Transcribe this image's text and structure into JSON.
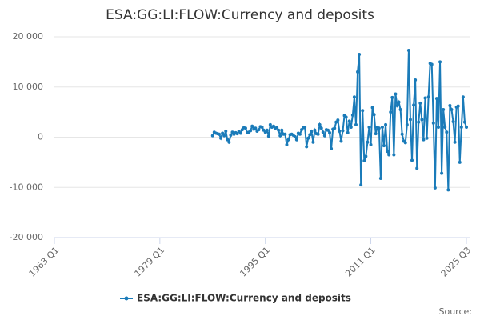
{
  "chart_data": {
    "type": "line",
    "title": "ESA:GG:LI:FLOW:Currency and deposits",
    "source": "Source:",
    "xlim": [
      "1963 Q1",
      "2025 Q3"
    ],
    "xticks": [
      "1963 Q1",
      "1979 Q1",
      "1995 Q1",
      "2011 Q1",
      "2025 Q3"
    ],
    "ylim": [
      -20000,
      20000
    ],
    "yticks": [
      {
        "value": -20000,
        "label": "-20 000"
      },
      {
        "value": -10000,
        "label": "-10 000"
      },
      0,
      {
        "value": 10000,
        "label": "10 000"
      },
      {
        "value": 20000,
        "label": "20 000"
      }
    ],
    "grid": true,
    "x": [
      "1987 Q1",
      "1987 Q2",
      "1987 Q3",
      "1987 Q4",
      "1988 Q1",
      "1988 Q2",
      "1988 Q3",
      "1988 Q4",
      "1989 Q1",
      "1989 Q2",
      "1989 Q3",
      "1989 Q4",
      "1990 Q1",
      "1990 Q2",
      "1990 Q3",
      "1990 Q4",
      "1991 Q1",
      "1991 Q2",
      "1991 Q3",
      "1991 Q4",
      "1992 Q1",
      "1992 Q2",
      "1992 Q3",
      "1992 Q4",
      "1993 Q1",
      "1993 Q2",
      "1993 Q3",
      "1993 Q4",
      "1994 Q1",
      "1994 Q2",
      "1994 Q3",
      "1994 Q4",
      "1995 Q1",
      "1995 Q2",
      "1995 Q3",
      "1995 Q4",
      "1996 Q1",
      "1996 Q2",
      "1996 Q3",
      "1996 Q4",
      "1997 Q1",
      "1997 Q2",
      "1997 Q3",
      "1997 Q4",
      "1998 Q1",
      "1998 Q2",
      "1998 Q3",
      "1998 Q4",
      "1999 Q1",
      "1999 Q2",
      "1999 Q3",
      "1999 Q4",
      "2000 Q1",
      "2000 Q2",
      "2000 Q3",
      "2000 Q4",
      "2001 Q1",
      "2001 Q2",
      "2001 Q3",
      "2001 Q4",
      "2002 Q1",
      "2002 Q2",
      "2002 Q3",
      "2002 Q4",
      "2003 Q1",
      "2003 Q2",
      "2003 Q3",
      "2003 Q4",
      "2004 Q1",
      "2004 Q2",
      "2004 Q3",
      "2004 Q4",
      "2005 Q1",
      "2005 Q2",
      "2005 Q3",
      "2005 Q4",
      "2006 Q1",
      "2006 Q2",
      "2006 Q3",
      "2006 Q4",
      "2007 Q1",
      "2007 Q2",
      "2007 Q3",
      "2007 Q4",
      "2008 Q1",
      "2008 Q2",
      "2008 Q3",
      "2008 Q4",
      "2009 Q1",
      "2009 Q2",
      "2009 Q3",
      "2009 Q4",
      "2010 Q1",
      "2010 Q2",
      "2010 Q3",
      "2010 Q4",
      "2011 Q1",
      "2011 Q2",
      "2011 Q3",
      "2011 Q4",
      "2012 Q1",
      "2012 Q2",
      "2012 Q3",
      "2012 Q4",
      "2013 Q1",
      "2013 Q2",
      "2013 Q3",
      "2013 Q4",
      "2014 Q1",
      "2014 Q2",
      "2014 Q3",
      "2014 Q4",
      "2015 Q1",
      "2015 Q2",
      "2015 Q3",
      "2015 Q4",
      "2016 Q1",
      "2016 Q2",
      "2016 Q3",
      "2016 Q4",
      "2017 Q1",
      "2017 Q2",
      "2017 Q3",
      "2017 Q4",
      "2018 Q1",
      "2018 Q2",
      "2018 Q3",
      "2018 Q4",
      "2019 Q1",
      "2019 Q2",
      "2019 Q3",
      "2019 Q4",
      "2020 Q1",
      "2020 Q2",
      "2020 Q3",
      "2020 Q4",
      "2021 Q1",
      "2021 Q2",
      "2021 Q3",
      "2021 Q4",
      "2022 Q1",
      "2022 Q2",
      "2022 Q3",
      "2022 Q4",
      "2023 Q1",
      "2023 Q2",
      "2023 Q3",
      "2023 Q4",
      "2024 Q1",
      "2024 Q2",
      "2024 Q3",
      "2024 Q4",
      "2025 Q1",
      "2025 Q2",
      "2025 Q3"
    ],
    "series": [
      {
        "name": "ESA:GG:LI:FLOW:Currency and deposits",
        "color": "#1a7bb9",
        "values": [
          300,
          1000,
          800,
          700,
          600,
          -200,
          800,
          300,
          1200,
          -500,
          -1000,
          400,
          1000,
          600,
          900,
          700,
          1200,
          800,
          1500,
          1900,
          1800,
          900,
          1000,
          1300,
          2200,
          1600,
          1800,
          1200,
          1500,
          2100,
          2000,
          1400,
          1000,
          1400,
          200,
          2500,
          2000,
          2200,
          1800,
          1900,
          1400,
          300,
          1400,
          600,
          600,
          -1500,
          -500,
          500,
          600,
          400,
          100,
          -500,
          800,
          600,
          1500,
          1900,
          2000,
          -1900,
          -200,
          500,
          1100,
          -1000,
          1400,
          700,
          600,
          2500,
          1800,
          1000,
          300,
          1500,
          1400,
          900,
          -2300,
          1600,
          1800,
          3000,
          3400,
          1200,
          -800,
          1300,
          4300,
          4000,
          900,
          3200,
          2000,
          4400,
          8000,
          2500,
          13000,
          16500,
          -9500,
          5300,
          -4700,
          -3800,
          -1000,
          2000,
          -1500,
          5900,
          4500,
          700,
          2000,
          1800,
          -8200,
          2000,
          -1700,
          2500,
          -2800,
          -3500,
          5000,
          7900,
          -3500,
          8600,
          6300,
          7000,
          5500,
          600,
          -800,
          -1100,
          2500,
          17300,
          3500,
          -4600,
          6400,
          11400,
          -6200,
          3000,
          6800,
          3500,
          -500,
          7800,
          -200,
          8000,
          14700,
          14500,
          2800,
          -10100,
          7700,
          2000,
          15000,
          -7200,
          5500,
          2000,
          1000,
          -10500,
          6300,
          5500,
          3100,
          -1000,
          6000,
          6200,
          -5000,
          2000,
          8000,
          3000,
          2000
        ]
      }
    ]
  }
}
